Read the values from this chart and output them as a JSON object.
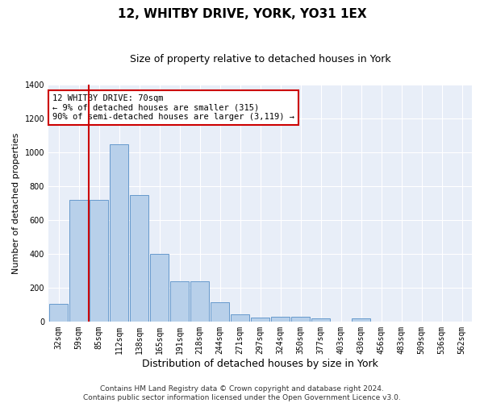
{
  "title": "12, WHITBY DRIVE, YORK, YO31 1EX",
  "subtitle": "Size of property relative to detached houses in York",
  "xlabel": "Distribution of detached houses by size in York",
  "ylabel": "Number of detached properties",
  "categories": [
    "32sqm",
    "59sqm",
    "85sqm",
    "112sqm",
    "138sqm",
    "165sqm",
    "191sqm",
    "218sqm",
    "244sqm",
    "271sqm",
    "297sqm",
    "324sqm",
    "350sqm",
    "377sqm",
    "403sqm",
    "430sqm",
    "456sqm",
    "483sqm",
    "509sqm",
    "536sqm",
    "562sqm"
  ],
  "values": [
    105,
    720,
    720,
    1050,
    750,
    400,
    240,
    240,
    115,
    40,
    25,
    28,
    28,
    20,
    0,
    20,
    0,
    0,
    0,
    0,
    0
  ],
  "bar_color": "#b8d0ea",
  "bar_edge_color": "#6699cc",
  "background_color": "#e8eef8",
  "grid_color": "#ffffff",
  "vline_x": 1.5,
  "vline_color": "#cc0000",
  "annotation_text": "12 WHITBY DRIVE: 70sqm\n← 9% of detached houses are smaller (315)\n90% of semi-detached houses are larger (3,119) →",
  "annotation_box_facecolor": "#ffffff",
  "annotation_box_edgecolor": "#cc0000",
  "ylim": [
    0,
    1400
  ],
  "yticks": [
    0,
    200,
    400,
    600,
    800,
    1000,
    1200,
    1400
  ],
  "footnote": "Contains HM Land Registry data © Crown copyright and database right 2024.\nContains public sector information licensed under the Open Government Licence v3.0.",
  "title_fontsize": 11,
  "subtitle_fontsize": 9,
  "xlabel_fontsize": 9,
  "ylabel_fontsize": 8,
  "tick_fontsize": 7,
  "annotation_fontsize": 7.5,
  "footnote_fontsize": 6.5
}
